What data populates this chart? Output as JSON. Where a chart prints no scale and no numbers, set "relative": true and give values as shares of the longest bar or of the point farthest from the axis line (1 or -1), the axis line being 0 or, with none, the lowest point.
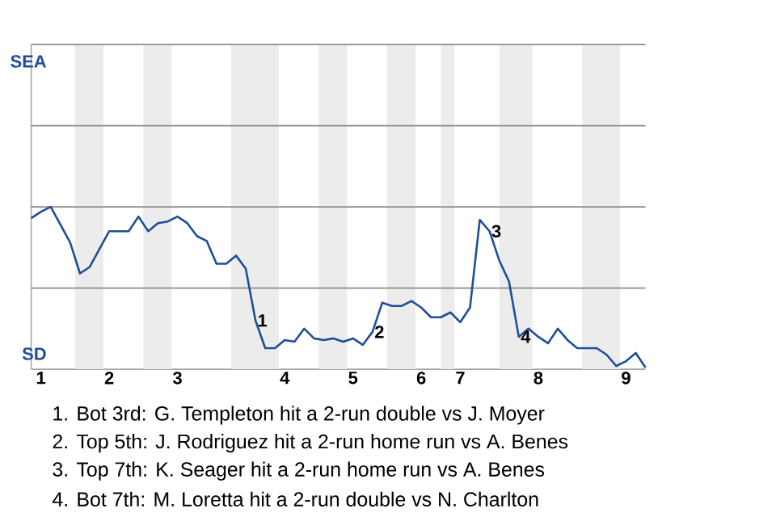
{
  "chart_data": {
    "type": "line",
    "relative": true,
    "categories": [
      null,
      "1",
      null,
      null,
      null,
      null,
      null,
      null,
      "2",
      null,
      null,
      null,
      null,
      null,
      null,
      "3",
      null,
      null,
      null,
      null,
      null,
      null,
      null,
      null,
      null,
      null,
      "4",
      null,
      null,
      null,
      null,
      null,
      null,
      "5",
      null,
      null,
      null,
      null,
      null,
      null,
      "6",
      null,
      null,
      null,
      "7",
      null,
      null,
      null,
      null,
      null,
      null,
      null,
      "8",
      null,
      null,
      null,
      null,
      null,
      null,
      null,
      null,
      "9",
      null,
      null
    ],
    "series": [
      {
        "color": "#1f4e96",
        "values": [
          0.93,
          0.97,
          1,
          0.89,
          0.78,
          0.59,
          0.63,
          0.74,
          0.85,
          0.85,
          0.85,
          0.94,
          0.85,
          0.9,
          0.91,
          0.94,
          0.9,
          0.82,
          0.79,
          0.65,
          0.65,
          0.7,
          0.62,
          0.3,
          0.13,
          0.13,
          0.18,
          0.17,
          0.25,
          0.19,
          0.18,
          0.19,
          0.17,
          0.19,
          0.15,
          0.23,
          0.41,
          0.39,
          0.39,
          0.42,
          0.38,
          0.32,
          0.32,
          0.35,
          0.29,
          0.38,
          0.92,
          0.85,
          0.67,
          0.54,
          0.2,
          0.25,
          0.2,
          0.16,
          0.25,
          0.18,
          0.13,
          0.13,
          0.13,
          0.09,
          0.02,
          0.05,
          0.1,
          0.01
        ]
      }
    ],
    "ref_lines": [
      {
        "axis": "y",
        "value": 0.5,
        "color": "#8c8c8c"
      },
      {
        "axis": "y",
        "value": 1,
        "color": "#8c8c8c"
      },
      {
        "axis": "y",
        "value": 1.5,
        "color": "#8c8c8c"
      },
      {
        "axis": "y",
        "value": 2,
        "color": "#8c8c8c"
      }
    ],
    "annotations": [
      {
        "text": "1",
        "y": 0.3
      },
      {
        "text": "2",
        "y": 0.23
      },
      {
        "text": "3",
        "y": 0.85
      },
      {
        "text": "4",
        "y": 0.2
      },
      "SEA",
      "SD",
      "1. Bot 3rd: G. Templeton hit a 2-run double vs J. Moyer",
      "2. Top 5th: J. Rodriguez hit a 2-run home run vs A. Benes",
      "3. Top 7th: K. Seager hit a 2-run home run vs A. Benes",
      "4. Bot 7th: M. Loretta hit a 2-run double vs N. Charlton"
    ]
  }
}
